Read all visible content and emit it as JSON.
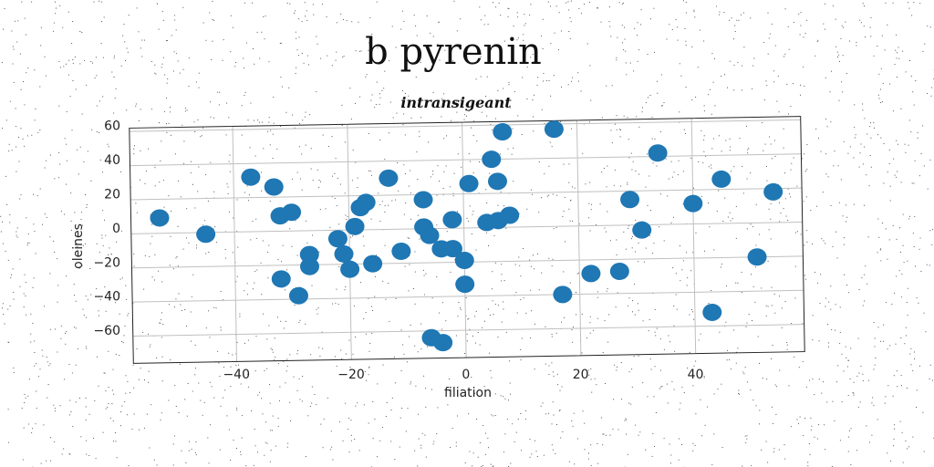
{
  "chart_data": {
    "type": "scatter",
    "title": "b pyrenin",
    "subtitle": "intransigeant",
    "xlabel": "filiation",
    "ylabel": "oleines",
    "xlim": [
      -58,
      59
    ],
    "ylim": [
      -76,
      62
    ],
    "xticks": [
      -40,
      -20,
      0,
      20,
      40
    ],
    "yticks": [
      -60,
      -40,
      -20,
      0,
      20,
      40,
      60
    ],
    "grid": true,
    "marker_color": "#1f77b4",
    "points": [
      {
        "x": -53,
        "y": 9
      },
      {
        "x": -45,
        "y": -1
      },
      {
        "x": -37,
        "y": 32
      },
      {
        "x": -33,
        "y": 26
      },
      {
        "x": -32,
        "y": 9
      },
      {
        "x": -30,
        "y": 11
      },
      {
        "x": -32,
        "y": -28
      },
      {
        "x": -29,
        "y": -38
      },
      {
        "x": -27,
        "y": -14
      },
      {
        "x": -27,
        "y": -21
      },
      {
        "x": -22,
        "y": -5
      },
      {
        "x": -21,
        "y": -14
      },
      {
        "x": -20,
        "y": -23
      },
      {
        "x": -19,
        "y": 2
      },
      {
        "x": -18,
        "y": 13
      },
      {
        "x": -17,
        "y": 16
      },
      {
        "x": -16,
        "y": -20
      },
      {
        "x": -13,
        "y": 30
      },
      {
        "x": -11,
        "y": -13
      },
      {
        "x": -7,
        "y": 17
      },
      {
        "x": -7,
        "y": 1
      },
      {
        "x": -6,
        "y": -4
      },
      {
        "x": -6,
        "y": -64
      },
      {
        "x": -4,
        "y": -67
      },
      {
        "x": -4,
        "y": -12
      },
      {
        "x": -2,
        "y": 5
      },
      {
        "x": -2,
        "y": -12
      },
      {
        "x": 0,
        "y": -19
      },
      {
        "x": 0,
        "y": -33
      },
      {
        "x": 1,
        "y": 26
      },
      {
        "x": 4,
        "y": 3
      },
      {
        "x": 5,
        "y": 40
      },
      {
        "x": 6,
        "y": 4
      },
      {
        "x": 6,
        "y": 27
      },
      {
        "x": 7,
        "y": 56
      },
      {
        "x": 8,
        "y": 7
      },
      {
        "x": 16,
        "y": 57
      },
      {
        "x": 17,
        "y": -40
      },
      {
        "x": 22,
        "y": -28
      },
      {
        "x": 27,
        "y": -27
      },
      {
        "x": 29,
        "y": 15
      },
      {
        "x": 31,
        "y": -3
      },
      {
        "x": 34,
        "y": 42
      },
      {
        "x": 40,
        "y": 12
      },
      {
        "x": 43,
        "y": -52
      },
      {
        "x": 45,
        "y": 26
      },
      {
        "x": 51,
        "y": -20
      },
      {
        "x": 54,
        "y": 18
      }
    ]
  }
}
